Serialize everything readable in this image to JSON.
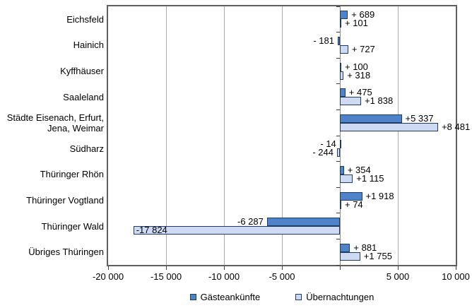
{
  "chart_data": {
    "type": "bar",
    "orientation": "horizontal",
    "title": "",
    "xlabel": "",
    "ylabel": "",
    "xlim": [
      -20000,
      10000
    ],
    "x_ticks": [
      {
        "value": -20000,
        "label": "-20 000"
      },
      {
        "value": -15000,
        "label": "-15 000"
      },
      {
        "value": -10000,
        "label": "-10 000"
      },
      {
        "value": -5000,
        "label": "-5 000"
      },
      {
        "value": 0,
        "label": ""
      },
      {
        "value": 5000,
        "label": "5 000"
      },
      {
        "value": 10000,
        "label": "10 000"
      }
    ],
    "gridlines": [
      -15000,
      -10000,
      -5000,
      0,
      5000
    ],
    "categories": [
      "Eichsfeld",
      "Hainich",
      "Kyffhäuser",
      "Saaleland",
      "Städte Eisenach, Erfurt,\nJena, Weimar",
      "Südharz",
      "Thüringer Rhön",
      "Thüringer Vogtland",
      "Thüringer Wald",
      "Übriges Thüringen"
    ],
    "series": [
      {
        "name": "Gästeankünfte",
        "fill": "#4E83C9",
        "border": "#1F3B68",
        "values": [
          689,
          -181,
          100,
          475,
          5337,
          -14,
          354,
          1918,
          -6287,
          881
        ],
        "labels": [
          "+ 689",
          "- 181",
          "+ 100",
          "+ 475",
          "+5 337",
          "- 14",
          "+ 354",
          "+1 918",
          "-6 287",
          "+ 881"
        ],
        "inside_label_indices": []
      },
      {
        "name": "Übernachtungen",
        "fill": "#CDDAF2",
        "border": "#1F3B68",
        "values": [
          101,
          727,
          318,
          1838,
          8481,
          -244,
          1115,
          74,
          -17824,
          1755
        ],
        "labels": [
          "+ 101",
          "+ 727",
          "+ 318",
          "+1 838",
          "+8 481",
          "- 244",
          "+1 115",
          "+ 74",
          "-17 824",
          "+1 755"
        ],
        "inside_label_indices": [
          8
        ]
      }
    ],
    "legend": {
      "position": "bottom",
      "items": [
        "Gästeankünfte",
        "Übernachtungen"
      ]
    }
  },
  "colors": {
    "background": "#ffffff",
    "plot_border": "#5f5f5f",
    "gridline": "#ababab",
    "zero_line": "#8a8a8a",
    "tick": "#3f3f3f",
    "text": "#000000"
  }
}
